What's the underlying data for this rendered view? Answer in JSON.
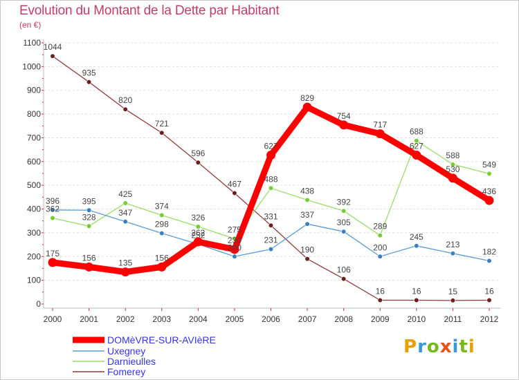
{
  "header": {
    "title": "Evolution du Montant de la Dette par Habitant",
    "unit": "(en €)"
  },
  "logo": {
    "text": "Proxiti",
    "colors": [
      "#e8a000",
      "#3a9ad9",
      "#77b81e",
      "#e8501a",
      "#3a9ad9",
      "#77b81e",
      "#e8a000"
    ]
  },
  "chart_data": {
    "type": "line",
    "title": "Evolution du Montant de la Dette par Habitant",
    "ylabel": "(en €)",
    "xlabel": "",
    "x": [
      "2000",
      "2001",
      "2002",
      "2003",
      "2004",
      "2005",
      "2006",
      "2007",
      "2008",
      "2009",
      "2010",
      "2011",
      "2012"
    ],
    "ylim": [
      0,
      1100
    ],
    "yticks": [
      0,
      100,
      200,
      300,
      400,
      500,
      600,
      700,
      800,
      900,
      1000,
      1100
    ],
    "grid": "horizontal dashed",
    "legend_position": "bottom-left",
    "series": [
      {
        "name": "DOMèVRE-SUR-AVIèRE",
        "color": "#ff0000",
        "marker": "#ff0000",
        "values": [
          175,
          156,
          135,
          156,
          262,
          230,
          627,
          829,
          754,
          717,
          627,
          530,
          436
        ]
      },
      {
        "name": "Uxegney",
        "color": "#5b9bd1",
        "marker": "#3a7fc1",
        "values": [
          396,
          395,
          347,
          298,
          252,
          200,
          231,
          337,
          305,
          200,
          245,
          213,
          182
        ]
      },
      {
        "name": "Darnieulles",
        "color": "#99dd66",
        "marker": "#77cc33",
        "values": [
          362,
          328,
          425,
          374,
          326,
          275,
          488,
          438,
          392,
          289,
          688,
          588,
          549
        ]
      },
      {
        "name": "Fomerey",
        "color": "#8b3a3a",
        "marker": "#6b1f1f",
        "values": [
          1044,
          935,
          820,
          721,
          596,
          467,
          331,
          190,
          106,
          16,
          16,
          15,
          16
        ]
      }
    ],
    "labels_shown": [
      [
        "175",
        "156",
        "135",
        "156",
        "262",
        "230",
        "627",
        "829",
        "754",
        "717",
        "627",
        "530",
        "436"
      ],
      [
        "396",
        "395",
        "347",
        "298",
        "252",
        "200",
        "231",
        "337",
        "305",
        "200",
        "245",
        "213",
        "182"
      ],
      [
        "362",
        "328",
        "425",
        "374",
        "326",
        "275",
        "488",
        "438",
        "392",
        "289",
        "688",
        "588",
        "549"
      ],
      [
        "1044",
        "935",
        "820",
        "721",
        "596",
        "467",
        "331",
        "190",
        "106",
        "16",
        "16",
        "15",
        "16"
      ]
    ]
  }
}
